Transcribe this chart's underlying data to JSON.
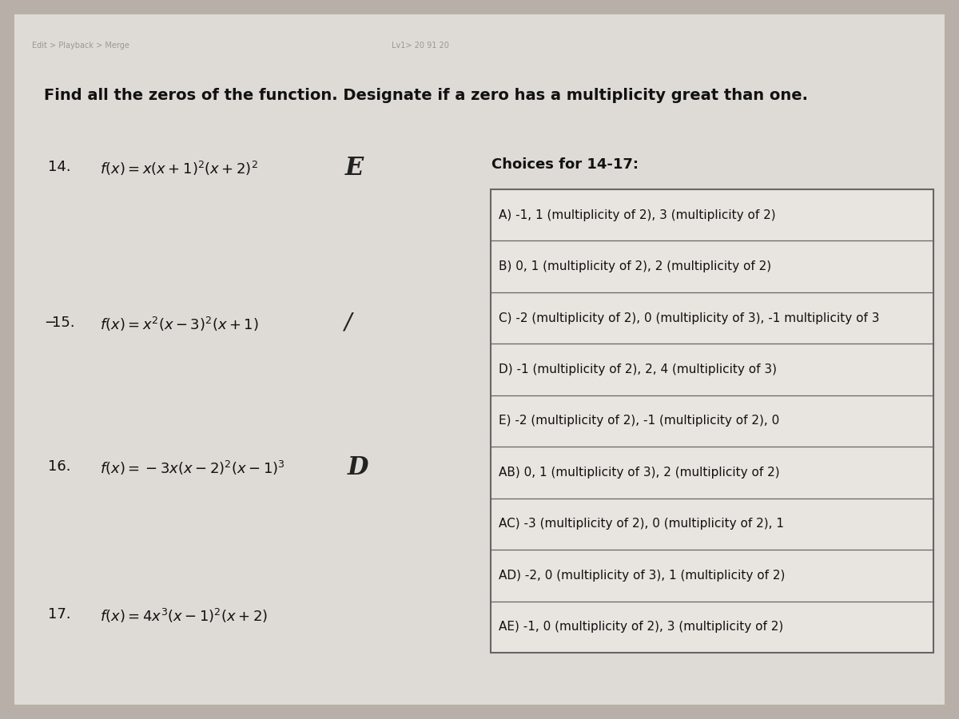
{
  "bg_color": "#b8b0a8",
  "page_color": "#dedad5",
  "title": "Find all the zeros of the function. Designate if a zero has a multiplicity great than one.",
  "title_fontsize": 14,
  "problems": [
    {
      "number": "14.",
      "function": "$f(x)=x(x+1)^2(x+2)^2$",
      "annotation": "E"
    },
    {
      "number": "15.",
      "function": "$f(x)=x^2(x-3)^2(x+1)$",
      "annotation": "/"
    },
    {
      "number": "16.",
      "function": "$f(x)=-3x(x-2)^2(x-1)^3$",
      "annotation": "D"
    },
    {
      "number": "17.",
      "function": "$f(x)=4x^3(x-1)^2(x+2)$",
      "annotation": ""
    }
  ],
  "choices_title": "Choices for 14-17:",
  "choices": [
    "A) -1, 1 (multiplicity of 2), 3 (multiplicity of 2)",
    "B) 0, 1 (multiplicity of 2), 2 (multiplicity of 2)",
    "C) -2 (multiplicity of 2), 0 (multiplicity of 3), -1 multiplicity of 3",
    "D) -1 (multiplicity of 2), 2, 4 (multiplicity of 3)",
    "E) -2 (multiplicity of 2), -1 (multiplicity of 2), 0",
    "AB) 0, 1 (multiplicity of 3), 2 (multiplicity of 2)",
    "AC) -3 (multiplicity of 2), 0 (multiplicity of 2), 1",
    "AD) -2, 0 (multiplicity of 3), 1 (multiplicity of 2)",
    "AE) -1, 0 (multiplicity of 2), 3 (multiplicity of 2)"
  ],
  "table_bg": "#e8e4df",
  "table_border": "#666666",
  "text_color": "#111111",
  "annotation_color": "#222222",
  "watermark_color": "#999999",
  "choices_fontsize": 11,
  "problem_fontsize": 13,
  "choices_title_fontsize": 13
}
